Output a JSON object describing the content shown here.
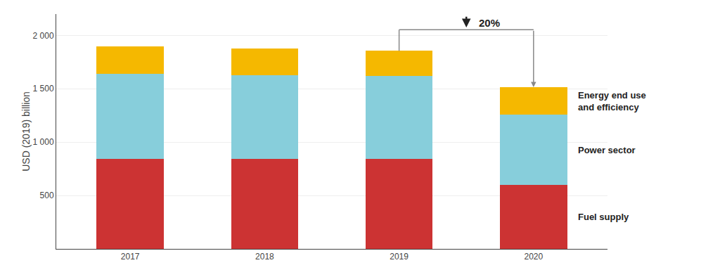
{
  "chart_data": {
    "type": "bar",
    "stacked": true,
    "categories": [
      "2017",
      "2018",
      "2019",
      "2020"
    ],
    "series": [
      {
        "name": "Fuel supply",
        "color": "#cc3333",
        "values": [
          840,
          845,
          845,
          600
        ]
      },
      {
        "name": "Power sector",
        "color": "#87cedb",
        "values": [
          800,
          780,
          775,
          655
        ]
      },
      {
        "name": "Energy end use\nand efficiency",
        "color": "#f5b800",
        "values": [
          255,
          250,
          235,
          260
        ]
      }
    ],
    "ylabel": "USD (2019) billion",
    "ylim": [
      0,
      2200
    ],
    "yticks": [
      500,
      {
        "value": 1000,
        "label": "1 000"
      },
      {
        "value": 1500,
        "label": "1 500"
      },
      {
        "value": 2000,
        "label": "2 000"
      }
    ],
    "grid": true,
    "annotations": [
      "20%"
    ]
  }
}
